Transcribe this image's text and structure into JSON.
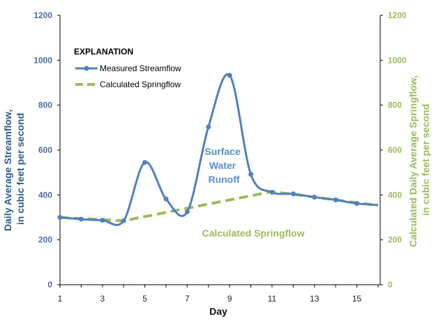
{
  "chart_data": {
    "type": "line",
    "xlabel": "Day",
    "ylabel_left": [
      "Daily Average Streamflow,",
      "in cubic feet per second"
    ],
    "ylabel_right": [
      "Calculated Daily Average Springflow,",
      "in cubic feet per second"
    ],
    "xlim": [
      1,
      16.1
    ],
    "ylim": [
      0,
      1200
    ],
    "x_ticks": [
      1,
      3,
      5,
      7,
      9,
      11,
      13,
      15
    ],
    "y_ticks": [
      0,
      200,
      400,
      600,
      800,
      1000,
      1200
    ],
    "grid": false,
    "legend": {
      "title": "EXPLANATION",
      "placement": "top-left",
      "entries": [
        "Measured Streamflow",
        "Calculated Springflow"
      ]
    },
    "series": [
      {
        "name": "Measured Streamflow",
        "axis": "left",
        "color": "#4f81bd",
        "style": "smooth-line-with-markers",
        "x": [
          1,
          2,
          3,
          4,
          5,
          6,
          7,
          8,
          9,
          10,
          11,
          12,
          13,
          14,
          15,
          16
        ],
        "y": [
          300,
          292,
          287,
          285,
          545,
          382,
          325,
          703,
          933,
          492,
          412,
          405,
          390,
          378,
          362,
          355
        ]
      },
      {
        "name": "Calculated Springflow",
        "axis": "right",
        "color": "#9bbb59",
        "style": "dashed-line",
        "x": [
          1,
          4,
          11,
          16
        ],
        "y": [
          300,
          285,
          415,
          353
        ]
      }
    ],
    "annotations": [
      {
        "lines": [
          "Surface",
          "Water",
          "Runoff"
        ],
        "color": "#5b8ccc"
      },
      {
        "lines": [
          "Calculated Springflow"
        ],
        "color": "#9bbb59"
      }
    ]
  }
}
